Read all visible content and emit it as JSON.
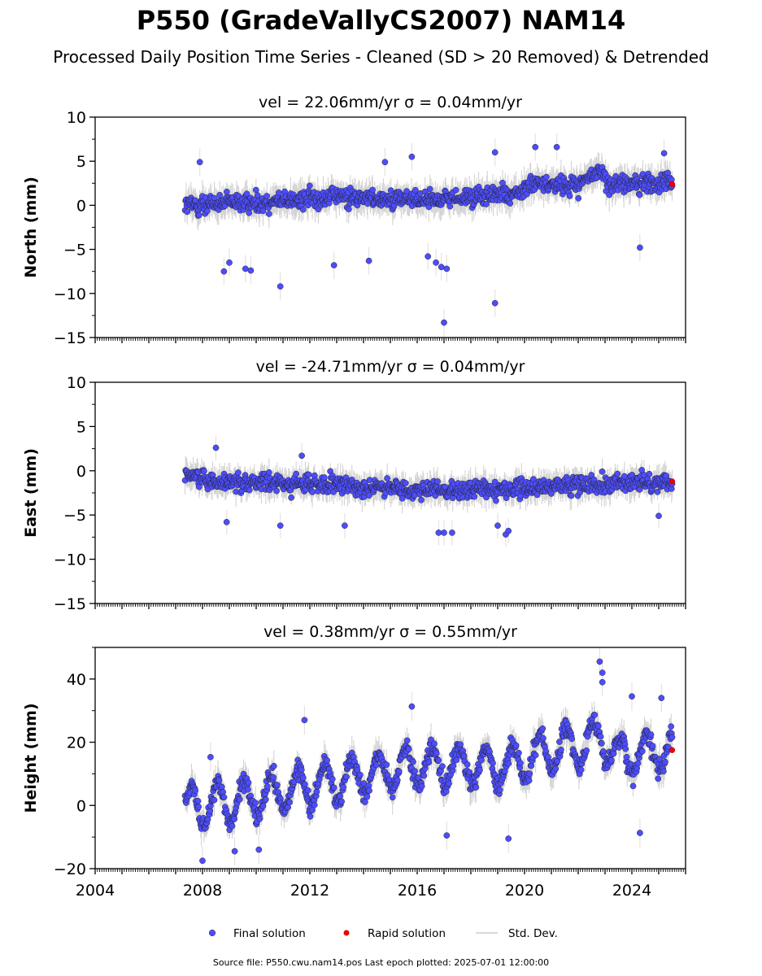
{
  "header": {
    "title": "P550 (GradeVallyCS2007) NAM14",
    "subtitle": "Processed Daily Position Time Series - Cleaned (SD > 20 Removed) & Detrended"
  },
  "footer": {
    "source": "Source file: P550.cwu.nam14.pos  Last epoch plotted: 2025-07-01 12:00:00"
  },
  "legend": {
    "final_label": "Final solution",
    "rapid_label": "Rapid solution",
    "std_label": "Std. Dev."
  },
  "colors": {
    "final": "#4d4dff",
    "rapid": "#ee0000",
    "std": "#b0b0b0",
    "edge": "#222222"
  },
  "chart_data": [
    {
      "type": "scatter",
      "component": "north",
      "title": "vel = 22.06mm/yr   σ = 0.04mm/yr",
      "ylabel": "North (mm)",
      "ylim": [
        -15,
        10
      ],
      "yticks": [
        10,
        5,
        0,
        -5,
        -10,
        -15
      ],
      "xlim": [
        2004,
        2026
      ],
      "xticks": [],
      "data_start": 2007.35,
      "data_end": 2025.5,
      "rapid_point": {
        "x": 2025.5,
        "y": 2.4
      },
      "trend": [
        [
          2007.4,
          0.0
        ],
        [
          2010,
          0.3
        ],
        [
          2013,
          1.0
        ],
        [
          2016,
          0.6
        ],
        [
          2018,
          0.9
        ],
        [
          2019.8,
          1.4
        ],
        [
          2020.2,
          2.3
        ],
        [
          2022,
          2.4
        ],
        [
          2022.8,
          3.8
        ],
        [
          2023.2,
          2.4
        ],
        [
          2025.5,
          2.6
        ]
      ],
      "scatter_sd": 1.2,
      "outliers": [
        {
          "x": 2007.9,
          "y": 4.9
        },
        {
          "x": 2008.8,
          "y": -7.5
        },
        {
          "x": 2009.0,
          "y": -6.5
        },
        {
          "x": 2009.6,
          "y": -7.2
        },
        {
          "x": 2009.8,
          "y": -7.4
        },
        {
          "x": 2010.9,
          "y": -9.2
        },
        {
          "x": 2012.9,
          "y": -6.8
        },
        {
          "x": 2014.2,
          "y": -6.3
        },
        {
          "x": 2014.8,
          "y": 4.9
        },
        {
          "x": 2015.8,
          "y": 5.5
        },
        {
          "x": 2016.4,
          "y": -5.8
        },
        {
          "x": 2016.7,
          "y": -6.5
        },
        {
          "x": 2016.9,
          "y": -7.0
        },
        {
          "x": 2017.1,
          "y": -7.2
        },
        {
          "x": 2017.0,
          "y": -13.3
        },
        {
          "x": 2018.9,
          "y": -11.1
        },
        {
          "x": 2018.9,
          "y": 6.0
        },
        {
          "x": 2020.4,
          "y": 6.6
        },
        {
          "x": 2021.2,
          "y": 6.6
        },
        {
          "x": 2024.3,
          "y": -4.8
        },
        {
          "x": 2025.2,
          "y": 5.9
        }
      ]
    },
    {
      "type": "scatter",
      "component": "east",
      "title": "vel = -24.71mm/yr   σ = 0.04mm/yr",
      "ylabel": "East (mm)",
      "ylim": [
        -15,
        10
      ],
      "yticks": [
        10,
        5,
        0,
        -5,
        -10,
        -15
      ],
      "xlim": [
        2004,
        2026
      ],
      "xticks": [],
      "data_start": 2007.35,
      "data_end": 2025.5,
      "rapid_point": {
        "x": 2025.5,
        "y": -1.2
      },
      "trend": [
        [
          2007.4,
          -0.3
        ],
        [
          2008.5,
          -1.2
        ],
        [
          2012,
          -1.5
        ],
        [
          2015,
          -2.0
        ],
        [
          2017,
          -2.2
        ],
        [
          2020,
          -2.1
        ],
        [
          2022,
          -1.5
        ],
        [
          2025.5,
          -1.3
        ]
      ],
      "scatter_sd": 1.1,
      "outliers": [
        {
          "x": 2008.5,
          "y": 2.6
        },
        {
          "x": 2008.9,
          "y": -5.8
        },
        {
          "x": 2010.9,
          "y": -6.2
        },
        {
          "x": 2011.7,
          "y": 1.7
        },
        {
          "x": 2013.3,
          "y": -6.2
        },
        {
          "x": 2016.8,
          "y": -7.0
        },
        {
          "x": 2017.0,
          "y": -7.0
        },
        {
          "x": 2017.3,
          "y": -7.0
        },
        {
          "x": 2019.0,
          "y": -6.2
        },
        {
          "x": 2019.3,
          "y": -7.2
        },
        {
          "x": 2019.4,
          "y": -6.8
        },
        {
          "x": 2025.0,
          "y": -5.1
        }
      ]
    },
    {
      "type": "scatter",
      "component": "height",
      "title": "vel = 0.38mm/yr   σ = 0.55mm/yr",
      "ylabel": "Height (mm)",
      "ylim": [
        -20,
        50
      ],
      "yticks": [
        40,
        20,
        0,
        -20
      ],
      "xlim": [
        2004,
        2026
      ],
      "xticks": [
        2004,
        2008,
        2012,
        2016,
        2020,
        2024
      ],
      "data_start": 2007.35,
      "data_end": 2025.5,
      "rapid_point": {
        "x": 2025.5,
        "y": 17.5
      },
      "trend": [
        [
          2007.4,
          0
        ],
        [
          2010,
          2
        ],
        [
          2013,
          8
        ],
        [
          2016,
          13
        ],
        [
          2019,
          12
        ],
        [
          2020.5,
          16
        ],
        [
          2022,
          19
        ],
        [
          2022.8,
          22
        ],
        [
          2023.5,
          15
        ],
        [
          2025.5,
          18
        ]
      ],
      "seasonal_amplitude": 6,
      "scatter_sd": 3.5,
      "outliers": [
        {
          "x": 2008.0,
          "y": -17.5
        },
        {
          "x": 2008.3,
          "y": 15.3
        },
        {
          "x": 2009.2,
          "y": -14.5
        },
        {
          "x": 2010.1,
          "y": -14.0
        },
        {
          "x": 2011.8,
          "y": 27.0
        },
        {
          "x": 2015.8,
          "y": 31.3
        },
        {
          "x": 2017.1,
          "y": -9.5
        },
        {
          "x": 2019.4,
          "y": -10.5
        },
        {
          "x": 2022.8,
          "y": 45.5
        },
        {
          "x": 2022.9,
          "y": 42.0
        },
        {
          "x": 2022.9,
          "y": 39.0
        },
        {
          "x": 2024.0,
          "y": 34.5
        },
        {
          "x": 2024.3,
          "y": -8.7
        },
        {
          "x": 2025.1,
          "y": 34.0
        }
      ]
    }
  ]
}
